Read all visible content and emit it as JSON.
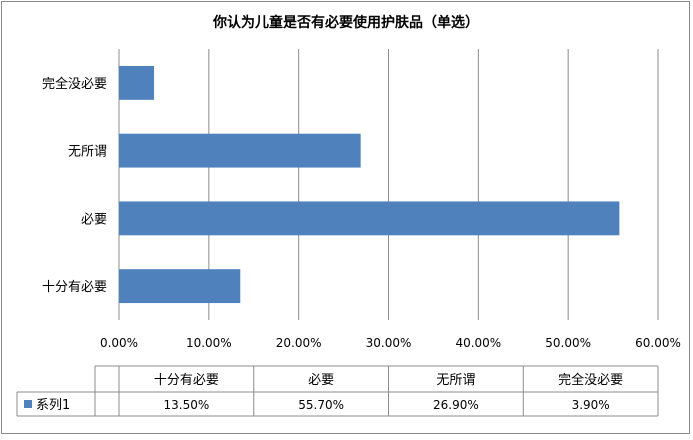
{
  "chart_data": {
    "type": "bar",
    "orientation": "horizontal",
    "title": "你认为儿童是否有必要使用护肤品（单选）",
    "categories": [
      "十分有必要",
      "必要",
      "无所谓",
      "完全没必要"
    ],
    "series": [
      {
        "name": "系列1",
        "values": [
          13.5,
          55.7,
          26.9,
          3.9
        ],
        "value_labels": [
          "13.50%",
          "55.70%",
          "26.90%",
          "3.90%"
        ],
        "color": "#4f81bd"
      }
    ],
    "xlim": [
      0,
      60
    ],
    "x_ticks": [
      "0.00%",
      "10.00%",
      "20.00%",
      "30.00%",
      "40.00%",
      "50.00%",
      "60.00%"
    ],
    "grid": true,
    "data_table": true,
    "legend": "data-table-left"
  }
}
